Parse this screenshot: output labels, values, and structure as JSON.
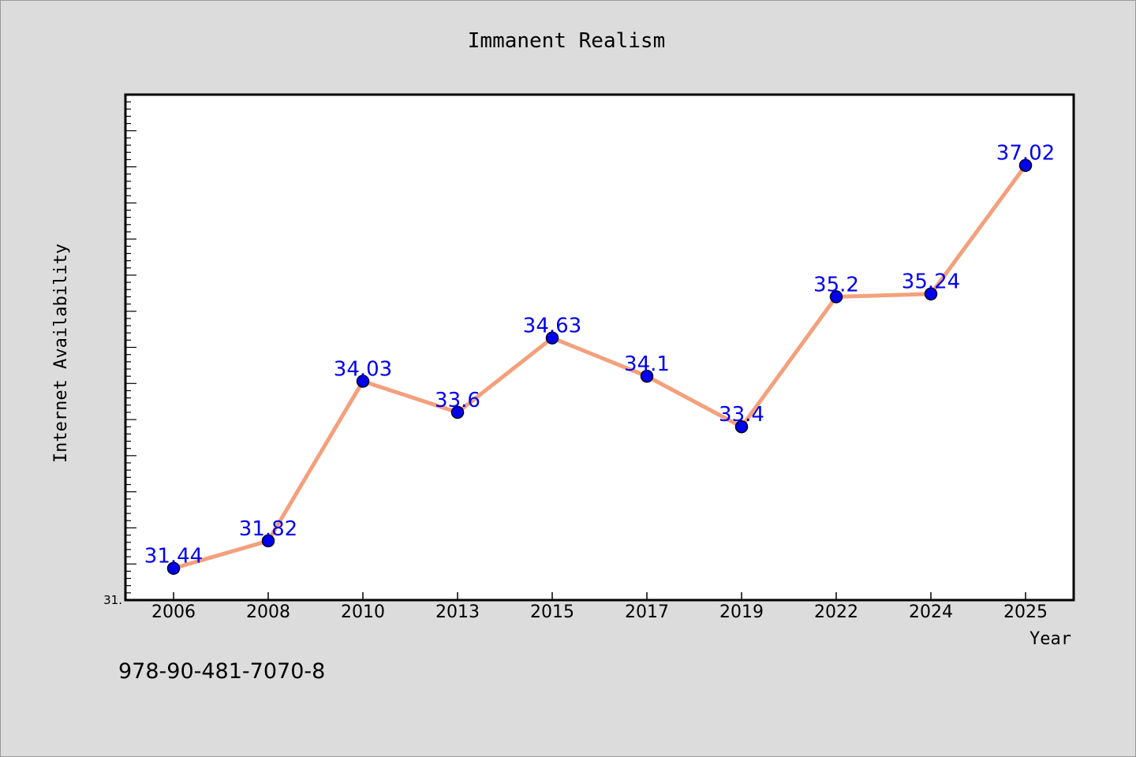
{
  "chart_data": {
    "type": "line",
    "title": "Immanent Realism",
    "xlabel": "Year",
    "ylabel": "Internet Availability",
    "categories": [
      "2006",
      "2008",
      "2010",
      "2013",
      "2015",
      "2017",
      "2019",
      "2022",
      "2024",
      "2025"
    ],
    "series": [
      {
        "values": [
          31.44,
          31.82,
          34.03,
          33.6,
          34.63,
          34.1,
          33.4,
          35.2,
          35.24,
          37.02
        ],
        "data_labels": [
          "31.44",
          "31.82",
          "34.03",
          "33.6",
          "34.63",
          "34.1",
          "33.4",
          "35.2",
          "35.24",
          "37.02"
        ]
      }
    ],
    "ylim": [
      31.0,
      38.0
    ],
    "y_tick_labels": [
      "31."
    ],
    "grid": false,
    "legend": "none",
    "colors": {
      "line": "#f4a07c",
      "marker": "#0000ee",
      "marker_edge": "#000022",
      "data_label": "#0000ee",
      "plot_bg": "#ffffff",
      "figure_bg": "#dcdcdc"
    }
  },
  "footer": {
    "isbn": "978-90-481-7070-8"
  }
}
